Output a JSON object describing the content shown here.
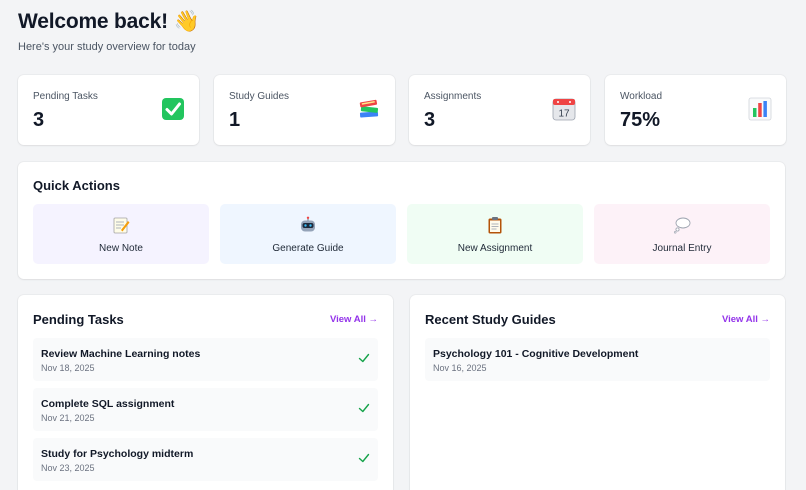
{
  "header": {
    "title": "Welcome back! 👋",
    "subtitle": "Here's your study overview for today"
  },
  "stats": [
    {
      "label": "Pending Tasks",
      "value": "3",
      "icon": "check-box-icon"
    },
    {
      "label": "Study Guides",
      "value": "1",
      "icon": "books-icon"
    },
    {
      "label": "Assignments",
      "value": "3",
      "icon": "calendar-icon",
      "icon_text": "17"
    },
    {
      "label": "Workload",
      "value": "75%",
      "icon": "bar-chart-icon"
    }
  ],
  "quick_actions": {
    "title": "Quick Actions",
    "items": [
      {
        "label": "New Note",
        "icon": "memo-icon",
        "bg": "#f5f3ff"
      },
      {
        "label": "Generate Guide",
        "icon": "robot-icon",
        "bg": "#eff6ff"
      },
      {
        "label": "New Assignment",
        "icon": "clipboard-icon",
        "bg": "#f0fdf4"
      },
      {
        "label": "Journal Entry",
        "icon": "thought-bubble-icon",
        "bg": "#fdf2f8"
      }
    ]
  },
  "pending_tasks": {
    "title": "Pending Tasks",
    "view_all": "View All →",
    "items": [
      {
        "title": "Review Machine Learning notes",
        "date": "Nov 18, 2025"
      },
      {
        "title": "Complete SQL assignment",
        "date": "Nov 21, 2025"
      },
      {
        "title": "Study for Psychology midterm",
        "date": "Nov 23, 2025"
      }
    ]
  },
  "recent_guides": {
    "title": "Recent Study Guides",
    "view_all": "View All →",
    "items": [
      {
        "title": "Psychology 101 - Cognitive Development",
        "date": "Nov 16, 2025"
      }
    ]
  },
  "colors": {
    "accent": "#9333ea",
    "check": "#16a34a",
    "emoji_check_bg": "#22c55e"
  }
}
